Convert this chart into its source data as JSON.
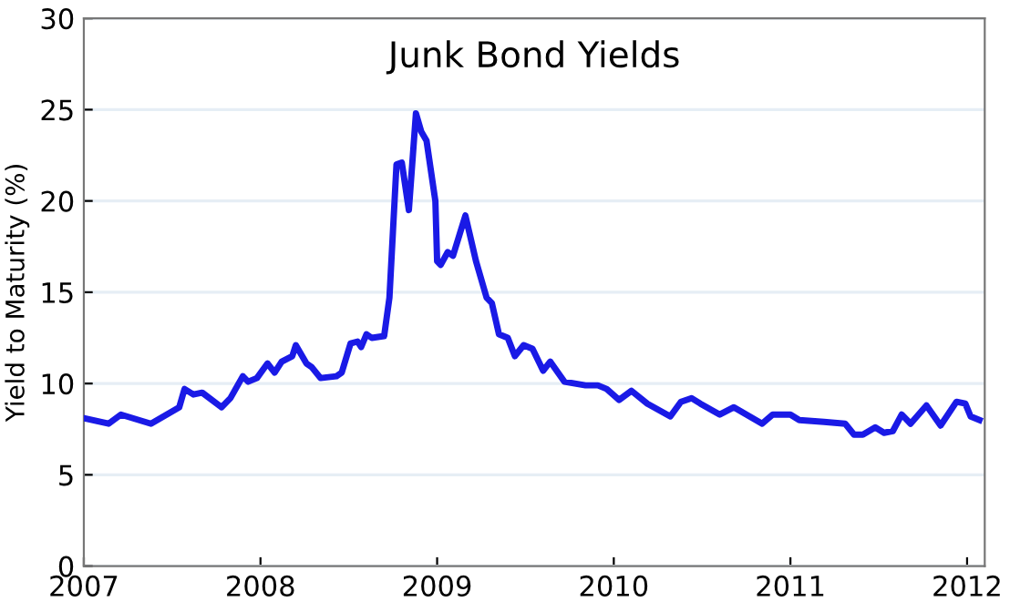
{
  "chart_data": {
    "type": "line",
    "title": "Junk Bond Yields",
    "ylabel": "Yield to Maturity (%)",
    "x": [
      2007.0,
      2007.14,
      2007.21,
      2007.38,
      2007.54,
      2007.57,
      2007.62,
      2007.67,
      2007.78,
      2007.83,
      2007.9,
      2007.93,
      2007.98,
      2008.04,
      2008.08,
      2008.12,
      2008.18,
      2008.2,
      2008.26,
      2008.29,
      2008.34,
      2008.43,
      2008.46,
      2008.51,
      2008.55,
      2008.57,
      2008.6,
      2008.63,
      2008.7,
      2008.73,
      2008.77,
      2008.8,
      2008.84,
      2008.88,
      2008.91,
      2008.94,
      2008.99,
      2009.0,
      2009.02,
      2009.06,
      2009.09,
      2009.16,
      2009.22,
      2009.28,
      2009.31,
      2009.35,
      2009.4,
      2009.44,
      2009.49,
      2009.54,
      2009.6,
      2009.64,
      2009.72,
      2009.84,
      2009.91,
      2009.96,
      2010.03,
      2010.1,
      2010.19,
      2010.32,
      2010.38,
      2010.44,
      2010.49,
      2010.6,
      2010.68,
      2010.84,
      2010.9,
      2011.0,
      2011.05,
      2011.19,
      2011.31,
      2011.36,
      2011.41,
      2011.48,
      2011.53,
      2011.58,
      2011.63,
      2011.68,
      2011.77,
      2011.85,
      2011.94,
      2011.99,
      2012.02,
      2012.07
    ],
    "series": [
      {
        "color": "#1a1ae6",
        "values": [
          8.1,
          7.8,
          8.3,
          7.8,
          8.7,
          9.7,
          9.4,
          9.5,
          8.7,
          9.2,
          10.4,
          10.1,
          10.3,
          11.1,
          10.6,
          11.2,
          11.5,
          12.1,
          11.1,
          10.9,
          10.3,
          10.4,
          10.6,
          12.2,
          12.3,
          12.0,
          12.7,
          12.5,
          12.6,
          14.7,
          22.0,
          22.1,
          19.5,
          24.8,
          23.8,
          23.3,
          20.0,
          16.7,
          16.5,
          17.2,
          17.0,
          19.2,
          16.7,
          14.7,
          14.4,
          12.7,
          12.5,
          11.5,
          12.1,
          11.9,
          10.7,
          11.2,
          10.1,
          9.9,
          9.9,
          9.7,
          9.1,
          9.6,
          8.9,
          8.2,
          9.0,
          9.2,
          8.9,
          8.3,
          8.7,
          7.8,
          8.3,
          8.3,
          8.0,
          7.9,
          7.8,
          7.2,
          7.2,
          7.6,
          7.3,
          7.4,
          8.3,
          7.8,
          8.8,
          7.7,
          9.0,
          8.9,
          8.2,
          8.0
        ]
      }
    ],
    "xlim": [
      2007,
      2012.1
    ],
    "xticks": [
      2007,
      2008,
      2009,
      2010,
      2011,
      2012
    ],
    "ylim": [
      0,
      30
    ],
    "yticks": [
      0,
      5,
      10,
      15,
      20,
      25,
      30
    ],
    "grid": "y",
    "line_style": "solid",
    "marker": "none"
  }
}
